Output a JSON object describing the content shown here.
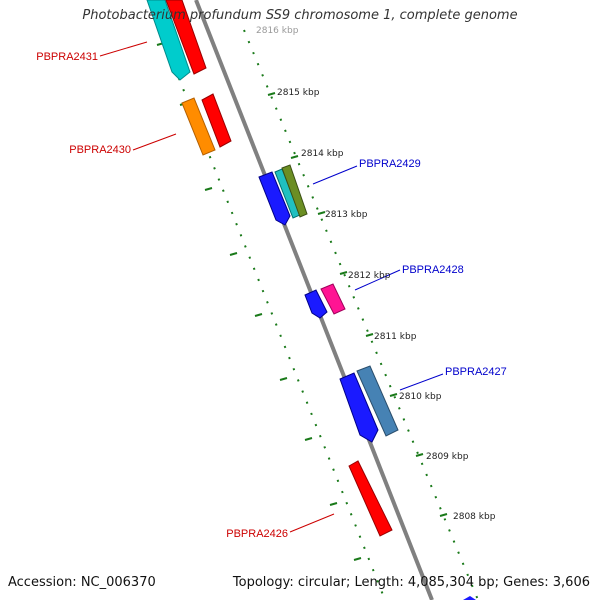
{
  "title": "Photobacterium profundum SS9 chromosome 1, complete genome",
  "footer": {
    "accession": "Accession: NC_006370",
    "summary": "Topology: circular; Length: 4,085,304 bp; Genes: 3,606"
  },
  "colors": {
    "backbone": "#808080",
    "tick": "#1a7a1a",
    "forward_label": "#cc0000",
    "reverse_label": "#0000cc"
  },
  "kbp_ticks": [
    "2816 kbp",
    "2815 kbp",
    "2814 kbp",
    "2813 kbp",
    "2812 kbp",
    "2811 kbp",
    "2810 kbp",
    "2809 kbp",
    "2808 kbp"
  ],
  "genes": [
    {
      "id": "PBPRA2431",
      "color": "#ff0000",
      "strand": "forward"
    },
    {
      "id": "PBPRA2430",
      "color": "#ff0000",
      "strand": "forward"
    },
    {
      "id": "PBPRA2429",
      "color": "#0000cc",
      "strand": "reverse"
    },
    {
      "id": "PBPRA2428",
      "color": "#0000cc",
      "strand": "reverse"
    },
    {
      "id": "PBPRA2427",
      "color": "#0000cc",
      "strand": "reverse"
    },
    {
      "id": "PBPRA2426",
      "color": "#ff0000",
      "strand": "forward"
    }
  ],
  "features": [
    {
      "name": "feature-cyan-1",
      "color": "#00cccc"
    },
    {
      "name": "feature-red-1",
      "color": "#ff0000"
    },
    {
      "name": "feature-orange",
      "color": "#ff8c00"
    },
    {
      "name": "feature-red-2",
      "color": "#ff0000"
    },
    {
      "name": "feature-blue-1",
      "color": "#1a1aff"
    },
    {
      "name": "feature-teal",
      "color": "#20c0c0"
    },
    {
      "name": "feature-olive",
      "color": "#6b8e23"
    },
    {
      "name": "feature-blue-2",
      "color": "#1a1aff"
    },
    {
      "name": "feature-magenta",
      "color": "#ff1493"
    },
    {
      "name": "feature-blue-3",
      "color": "#1a1aff"
    },
    {
      "name": "feature-steelblue",
      "color": "#4682b4"
    },
    {
      "name": "feature-red-3",
      "color": "#ff0000"
    }
  ]
}
